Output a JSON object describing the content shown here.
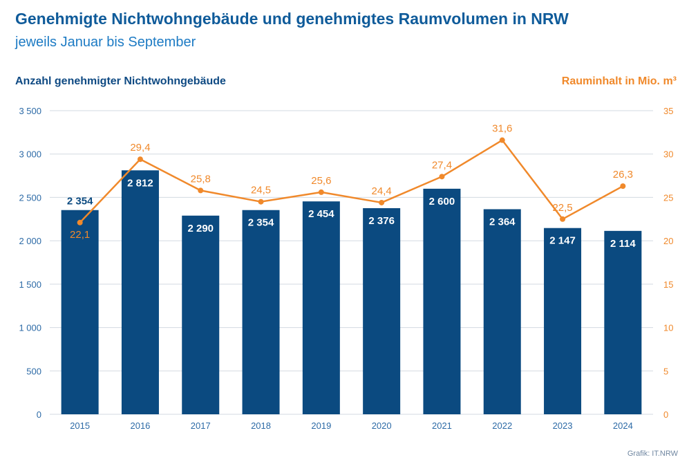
{
  "header": {
    "title": "Genehmigte Nichtwohngebäude und genehmigtes Raumvolumen in NRW",
    "subtitle": "jeweils Januar bis September",
    "source": "Grafik: IT.NRW"
  },
  "colors": {
    "bar": "#0b4a80",
    "line": "#f0892b",
    "grid": "#d3d9e0"
  },
  "chart_data": {
    "type": "bar",
    "categories": [
      "2015",
      "2016",
      "2017",
      "2018",
      "2019",
      "2020",
      "2021",
      "2022",
      "2023",
      "2024"
    ],
    "ylabel": "Anzahl genehmigter Nichtwohngebäude",
    "ylabel_right": "Rauminhalt in Mio. m³",
    "ylim": [
      0,
      3500
    ],
    "ylim_right": [
      0,
      35
    ],
    "yticks": [
      "0",
      "500",
      "1 000",
      "1 500",
      "2 000",
      "2 500",
      "3 000",
      "3 500"
    ],
    "yticks_right": [
      "0",
      "5",
      "10",
      "15",
      "20",
      "25",
      "30",
      "35"
    ],
    "grid": true,
    "series": [
      {
        "type": "bar",
        "axis": "left",
        "values": [
          2354,
          2812,
          2290,
          2354,
          2454,
          2376,
          2600,
          2364,
          2147,
          2114
        ],
        "labels": [
          "2 354",
          "2 812",
          "2 290",
          "2 354",
          "2 454",
          "2 376",
          "2 600",
          "2 364",
          "2 147",
          "2 114"
        ]
      },
      {
        "type": "line",
        "axis": "right",
        "values": [
          22.1,
          29.4,
          25.8,
          24.5,
          25.6,
          24.4,
          27.4,
          31.6,
          22.5,
          26.3
        ],
        "labels": [
          "22,1",
          "29,4",
          "25,8",
          "24,5",
          "25,6",
          "24,4",
          "27,4",
          "31,6",
          "22,5",
          "26,3"
        ]
      }
    ]
  }
}
